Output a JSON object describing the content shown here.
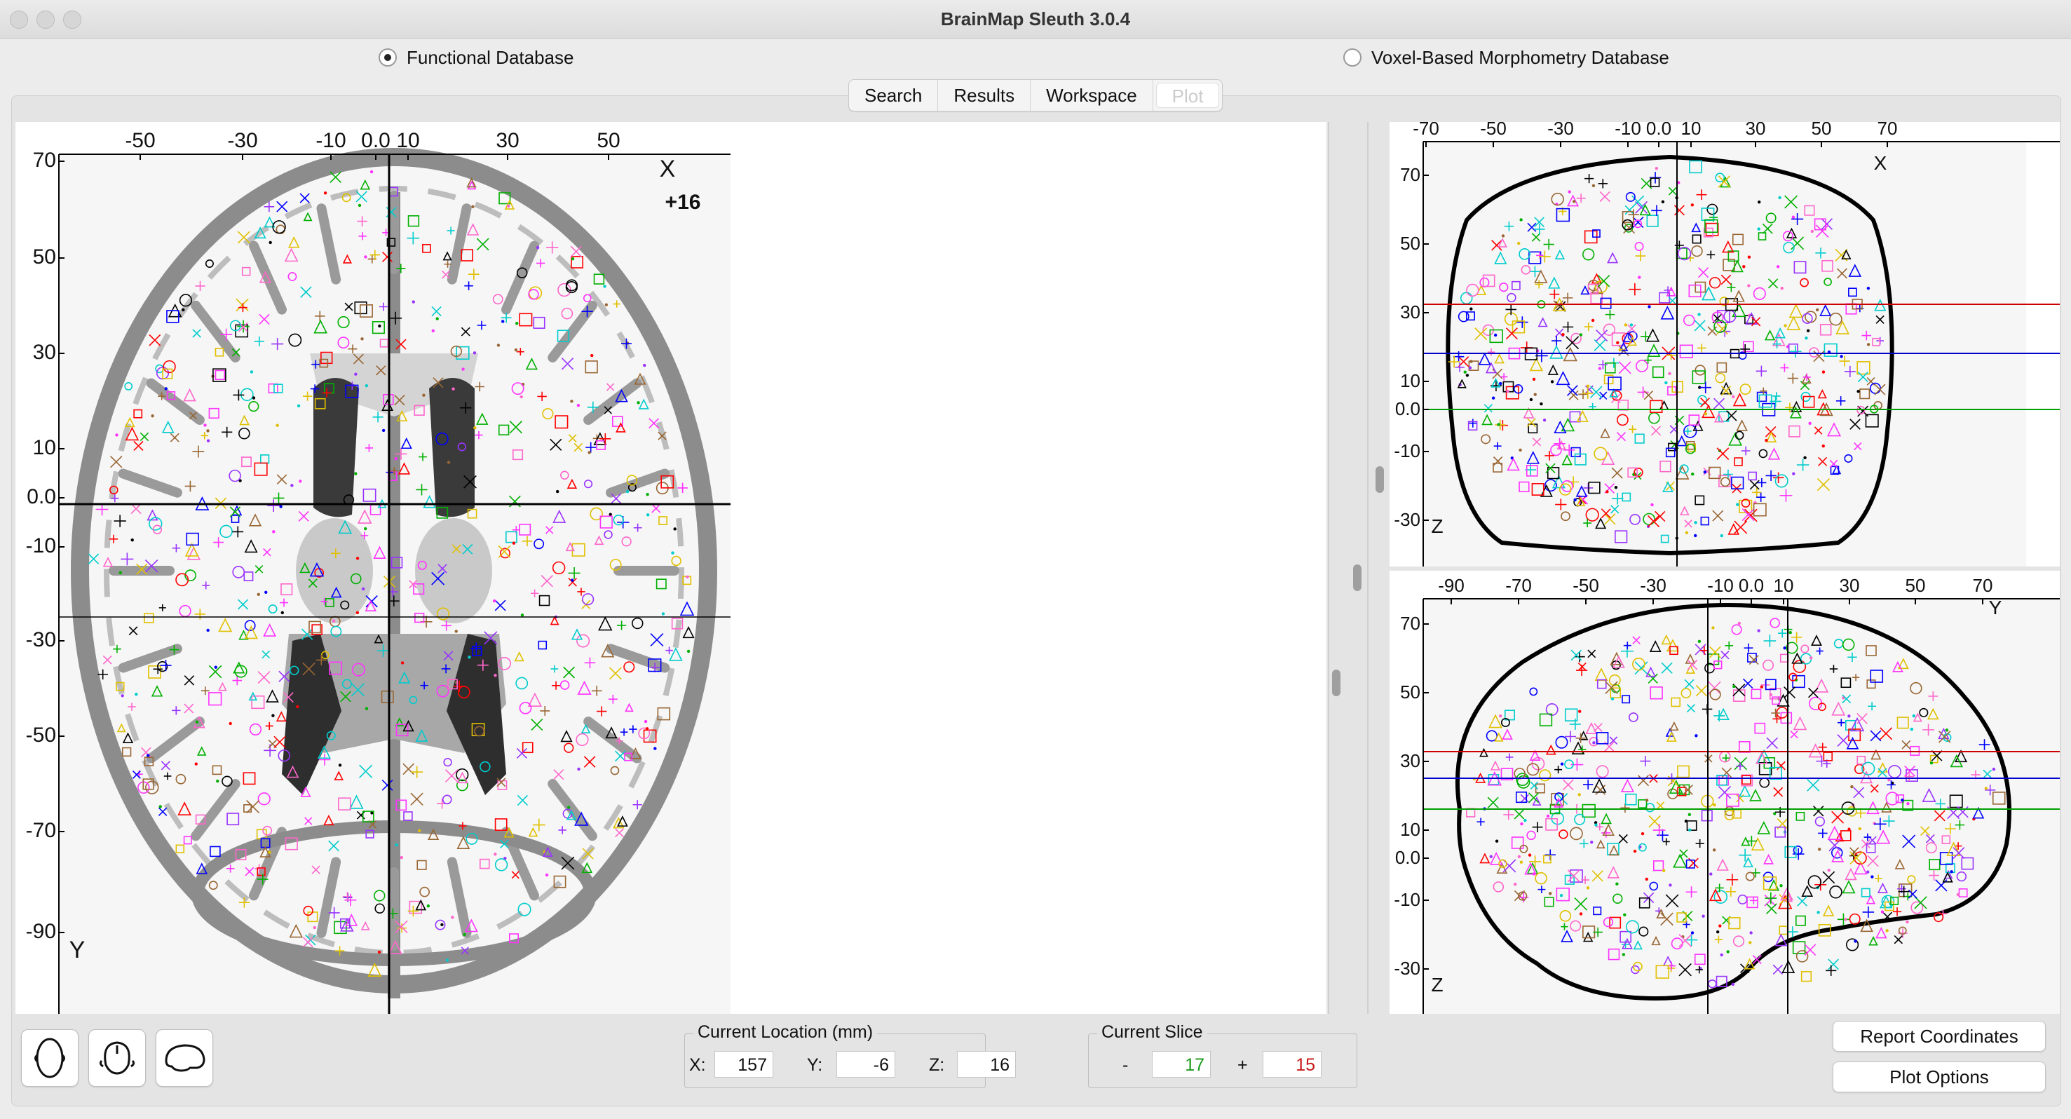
{
  "window": {
    "title": "BrainMap Sleuth 3.0.4"
  },
  "database": {
    "functional_label": "Functional Database",
    "vbm_label": "Voxel-Based Morphometry Database",
    "selected": "functional"
  },
  "tabs": [
    {
      "label": "Search"
    },
    {
      "label": "Results"
    },
    {
      "label": "Workspace"
    },
    {
      "label": "Plot"
    }
  ],
  "axial_view": {
    "x_ticks": [
      "-50",
      "-30",
      "-10",
      "0.0",
      "10",
      "30",
      "50"
    ],
    "y_ticks": [
      "70",
      "50",
      "30",
      "10",
      "0.0",
      "-10",
      "-30",
      "-50",
      "-70",
      "-90"
    ],
    "corner_top": "X",
    "corner_bottom": "Y",
    "slice_label": "+16"
  },
  "coronal_view": {
    "x_ticks": [
      "-70",
      "-50",
      "-30",
      "-10",
      "0.0",
      "10",
      "30",
      "50",
      "70"
    ],
    "y_ticks": [
      "70",
      "50",
      "30",
      "10",
      "0.0",
      "-10",
      "-30"
    ],
    "corner_top": "X",
    "corner_bottom": "Z"
  },
  "sagittal_view": {
    "x_ticks": [
      "-90",
      "-70",
      "-50",
      "-30",
      "-10",
      "0.0",
      "10",
      "30",
      "50",
      "70"
    ],
    "y_ticks": [
      "70",
      "50",
      "30",
      "10",
      "0.0",
      "-10",
      "-30"
    ],
    "corner_top": "Y",
    "corner_bottom": "Z"
  },
  "marker_colors": [
    "#ff33ff",
    "#0000ff",
    "#00b000",
    "#ff0000",
    "#00cccc",
    "#e0c000",
    "#000000",
    "#ff66cc",
    "#9933ff",
    "#996633"
  ],
  "view_buttons": [
    {
      "icon": "axial-head-icon"
    },
    {
      "icon": "coronal-head-icon"
    },
    {
      "icon": "sagittal-head-icon"
    }
  ],
  "current_location": {
    "title": "Current Location (mm)",
    "x_label": "X:",
    "x_value": "157",
    "y_label": "Y:",
    "y_value": "-6",
    "z_label": "Z:",
    "z_value": "16"
  },
  "current_slice": {
    "title": "Current Slice",
    "minus_label": "-",
    "minus_value": "17",
    "plus_label": "+",
    "plus_value": "15"
  },
  "buttons": {
    "report": "Report Coordinates",
    "plot_options": "Plot Options"
  }
}
